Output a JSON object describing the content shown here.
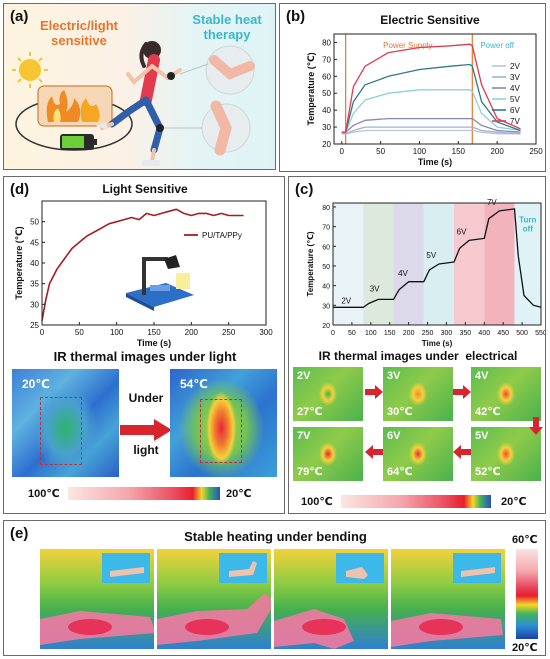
{
  "panel_a": {
    "label": "(a)",
    "left_caption_1": "Electric/light",
    "left_caption_2": "sensitive",
    "right_caption_1": "Stable heat",
    "right_caption_2": "therapy"
  },
  "panel_b": {
    "label": "(b)",
    "annotation_on": "Power Supply",
    "annotation_off": "Power off"
  },
  "panel_c": {
    "label": "(c)",
    "step_labels": [
      "2V",
      "3V",
      "4V",
      "5V",
      "6V",
      "7V"
    ],
    "turn_off_1": "Turn",
    "turn_off_2": "off",
    "ir_title": "IR thermal images under  electrical",
    "tiles": [
      {
        "voltage": "2V",
        "temp": "27℃"
      },
      {
        "voltage": "3V",
        "temp": "30℃"
      },
      {
        "voltage": "4V",
        "temp": "42℃"
      },
      {
        "voltage": "7V",
        "temp": "79℃"
      },
      {
        "voltage": "6V",
        "temp": "64℃"
      },
      {
        "voltage": "5V",
        "temp": "52℃"
      }
    ],
    "scale_max": "100℃",
    "scale_min": "20℃"
  },
  "panel_d": {
    "label": "(d)",
    "ir_title": "IR thermal images under light",
    "before_temp": "20℃",
    "after_temp": "54℃",
    "arrow_text_1": "Under",
    "arrow_text_2": "light",
    "scale_max": "100℃",
    "scale_min": "20℃"
  },
  "panel_e": {
    "label": "(e)",
    "title": "Stable heating under bending",
    "scale_max": "60℃",
    "scale_min": "20℃"
  },
  "colors": {
    "orange": "#e8752a",
    "teal": "#3bb8c8",
    "line_red": "#a31f1f"
  },
  "chart_data": [
    {
      "type": "line",
      "title": "Electric Sensitive",
      "xlabel": "Time (s)",
      "ylabel": "Temperature (℃)",
      "xlim": [
        -10,
        250
      ],
      "ylim": [
        20,
        85
      ],
      "xticks": [
        0,
        50,
        100,
        150,
        200,
        250
      ],
      "yticks": [
        20,
        30,
        40,
        50,
        60,
        70,
        80
      ],
      "grid": false,
      "legend": "right",
      "vlines": [
        5,
        168
      ],
      "x": [
        0,
        5,
        15,
        30,
        60,
        100,
        140,
        165,
        168,
        180,
        200,
        230
      ],
      "series": [
        {
          "name": "2V",
          "color": "#b9c3d6",
          "values": [
            26,
            26,
            27,
            28,
            28,
            28,
            28,
            28,
            28,
            27,
            26,
            26
          ]
        },
        {
          "name": "3V",
          "color": "#9fb4cf",
          "values": [
            26,
            26,
            28,
            30,
            30,
            30,
            30,
            30,
            30,
            28,
            27,
            26
          ]
        },
        {
          "name": "4V",
          "color": "#8a84b8",
          "values": [
            27,
            27,
            31,
            34,
            35,
            35,
            35,
            35,
            35,
            31,
            28,
            27
          ]
        },
        {
          "name": "5V",
          "color": "#8ed0da",
          "values": [
            27,
            27,
            38,
            46,
            50,
            52,
            52,
            52,
            51,
            38,
            30,
            28
          ]
        },
        {
          "name": "6V",
          "color": "#2d7a8a",
          "values": [
            27,
            27,
            45,
            55,
            60,
            64,
            66,
            67,
            66,
            45,
            33,
            28
          ]
        },
        {
          "name": "7V",
          "color": "#e43a4e",
          "values": [
            27,
            27,
            54,
            66,
            74,
            77,
            78,
            79,
            78,
            55,
            35,
            29
          ]
        }
      ]
    },
    {
      "type": "line",
      "title": "",
      "xlabel": "Time (s)",
      "ylabel": "Temperature (℃)",
      "xlim": [
        0,
        550
      ],
      "ylim": [
        20,
        82
      ],
      "xticks": [
        0,
        50,
        100,
        150,
        200,
        250,
        300,
        350,
        400,
        450,
        500,
        550
      ],
      "yticks": [
        20,
        30,
        40,
        50,
        60,
        70,
        80
      ],
      "grid": false,
      "bands": [
        {
          "label": "2V",
          "from": 0,
          "to": 80,
          "color": "#e9f3f7"
        },
        {
          "label": "3V",
          "from": 80,
          "to": 160,
          "color": "#dde9dc"
        },
        {
          "label": "4V",
          "from": 160,
          "to": 240,
          "color": "#dcd9ea"
        },
        {
          "label": "5V",
          "from": 240,
          "to": 320,
          "color": "#d8eef1"
        },
        {
          "label": "6V",
          "from": 320,
          "to": 400,
          "color": "#f6c9cf"
        },
        {
          "label": "7V",
          "from": 400,
          "to": 480,
          "color": "#f3b3bd"
        },
        {
          "label": "Turn off",
          "from": 480,
          "to": 550,
          "color": "#dff3f6"
        }
      ],
      "x": [
        0,
        80,
        95,
        120,
        160,
        175,
        200,
        240,
        255,
        280,
        320,
        335,
        360,
        400,
        412,
        440,
        480,
        490,
        505,
        530,
        550
      ],
      "series": [
        {
          "name": "",
          "color": "#111111",
          "values": [
            29,
            29,
            31,
            33,
            33,
            38,
            42,
            42,
            48,
            51,
            52,
            59,
            63,
            64,
            74,
            78,
            79,
            55,
            35,
            30,
            29
          ]
        }
      ]
    },
    {
      "type": "line",
      "title": "Light Sensitive",
      "xlabel": "Time (s)",
      "ylabel": "Temperature (℃)",
      "xlim": [
        0,
        300
      ],
      "ylim": [
        25,
        55
      ],
      "xticks": [
        0,
        50,
        100,
        150,
        200,
        250,
        300
      ],
      "yticks": [
        25,
        30,
        35,
        40,
        45,
        50
      ],
      "grid": false,
      "legend": "right",
      "x": [
        0,
        5,
        10,
        20,
        30,
        40,
        50,
        60,
        70,
        80,
        90,
        100,
        110,
        120,
        130,
        140,
        150,
        160,
        170,
        180,
        190,
        200,
        210,
        220,
        230,
        240,
        250,
        260,
        270
      ],
      "series": [
        {
          "name": "PU/TA/PPy",
          "color": "#a31f1f",
          "values": [
            26,
            31,
            35,
            38.5,
            41,
            43.5,
            45,
            46.5,
            47.5,
            48.5,
            49.5,
            50,
            50.5,
            51,
            50.5,
            52,
            51.5,
            52,
            52.5,
            53,
            52,
            51.5,
            52,
            52,
            51.5,
            52,
            51.5,
            51.5,
            51.5
          ]
        }
      ]
    }
  ]
}
